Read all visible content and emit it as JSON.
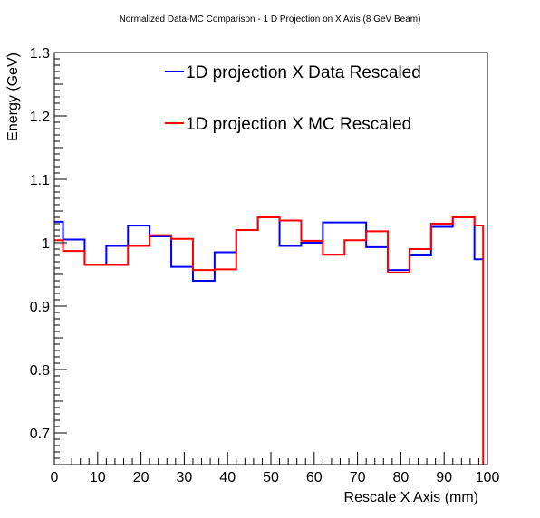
{
  "chart_data": {
    "type": "line",
    "title": "Normalized Data-MC Comparison - 1 D Projection on X Axis (8 GeV Beam)",
    "xlabel": "Rescale X Axis (mm)",
    "ylabel": "Energy (GeV)",
    "xlim": [
      0,
      100
    ],
    "ylim": [
      0.65,
      1.3
    ],
    "x_ticks": [
      0,
      10,
      20,
      30,
      40,
      50,
      60,
      70,
      80,
      90,
      100
    ],
    "x_tick_labels": [
      "0",
      "10",
      "20",
      "30",
      "40",
      "50",
      "60",
      "70",
      "80",
      "90",
      "100"
    ],
    "y_ticks": [
      0.7,
      0.8,
      0.9,
      1.0,
      1.1,
      1.2,
      1.3
    ],
    "y_tick_labels": [
      "0.7",
      "0.8",
      "0.9",
      "1",
      "1.1",
      "1.2",
      "1.3"
    ],
    "grid": false,
    "legend_position": "top",
    "series": [
      {
        "name": "1D projection X Data Rescaled",
        "color": "#0000ff",
        "bin_edges": [
          0,
          2,
          7,
          12,
          17,
          22,
          27,
          32,
          37,
          42,
          47,
          52,
          57,
          62,
          67,
          72,
          77,
          82,
          87,
          92,
          97,
          99
        ],
        "values": [
          1.033,
          1.005,
          0.965,
          0.995,
          1.027,
          1.01,
          0.962,
          0.94,
          0.985,
          1.02,
          1.04,
          0.995,
          1.0,
          1.032,
          1.032,
          0.993,
          0.957,
          0.98,
          1.025,
          1.04,
          0.974
        ]
      },
      {
        "name": "1D projection X MC Rescaled",
        "color": "#ff0000",
        "bin_edges": [
          0,
          2,
          7,
          12,
          17,
          22,
          27,
          32,
          37,
          42,
          47,
          52,
          57,
          62,
          67,
          72,
          77,
          82,
          87,
          92,
          97,
          99
        ],
        "values": [
          1.004,
          0.987,
          0.965,
          0.965,
          0.995,
          1.012,
          1.006,
          0.957,
          0.958,
          1.02,
          1.04,
          1.035,
          1.003,
          0.981,
          1.004,
          1.018,
          0.953,
          0.99,
          1.03,
          1.04,
          1.027
        ]
      }
    ]
  }
}
